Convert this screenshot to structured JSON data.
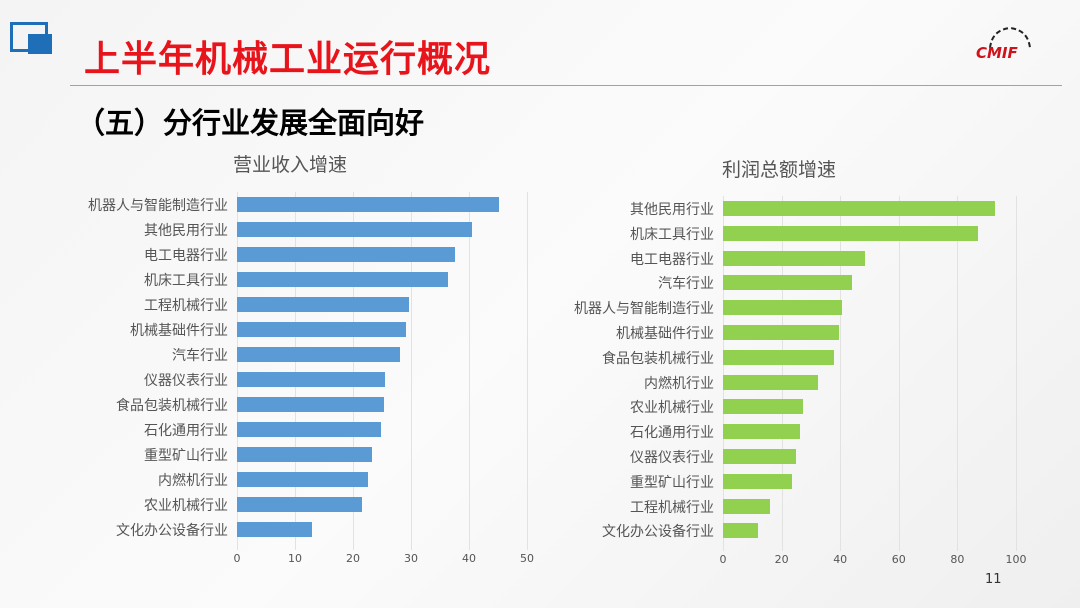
{
  "header": {
    "title": "上半年机械工业运行概况",
    "subtitle": "（五）分行业发展全面向好",
    "logo_text": "CMIF",
    "page_number": "11"
  },
  "chart_data": [
    {
      "type": "bar",
      "orientation": "horizontal",
      "title": "营业收入增速",
      "xlim": [
        0,
        50
      ],
      "ticks": [
        0,
        10,
        20,
        30,
        40,
        50
      ],
      "color": "#5b9bd5",
      "categories": [
        "机器人与智能制造行业",
        "其他民用行业",
        "电工电器行业",
        "机床工具行业",
        "工程机械行业",
        "机械基础件行业",
        "汽车行业",
        "仪器仪表行业",
        "食品包装机械行业",
        "石化通用行业",
        "重型矿山行业",
        "内燃机行业",
        "农业机械行业",
        "文化办公设备行业"
      ],
      "values": [
        45.2,
        40.5,
        37.6,
        36.4,
        29.7,
        29.1,
        28.1,
        25.5,
        25.3,
        24.8,
        23.3,
        22.6,
        21.6,
        12.9
      ]
    },
    {
      "type": "bar",
      "orientation": "horizontal",
      "title": "利润总额增速",
      "xlim": [
        0,
        100
      ],
      "ticks": [
        0,
        20,
        40,
        60,
        80,
        100
      ],
      "color": "#92d050",
      "categories": [
        "其他民用行业",
        "机床工具行业",
        "电工电器行业",
        "汽车行业",
        "机器人与智能制造行业",
        "机械基础件行业",
        "食品包装机械行业",
        "内燃机行业",
        "农业机械行业",
        "石化通用行业",
        "仪器仪表行业",
        "重型矿山行业",
        "工程机械行业",
        "文化办公设备行业"
      ],
      "values": [
        92.8,
        87,
        48.5,
        44,
        40.6,
        39.6,
        37.9,
        32.4,
        27.3,
        26.3,
        24.9,
        23.5,
        16,
        11.9
      ]
    }
  ]
}
